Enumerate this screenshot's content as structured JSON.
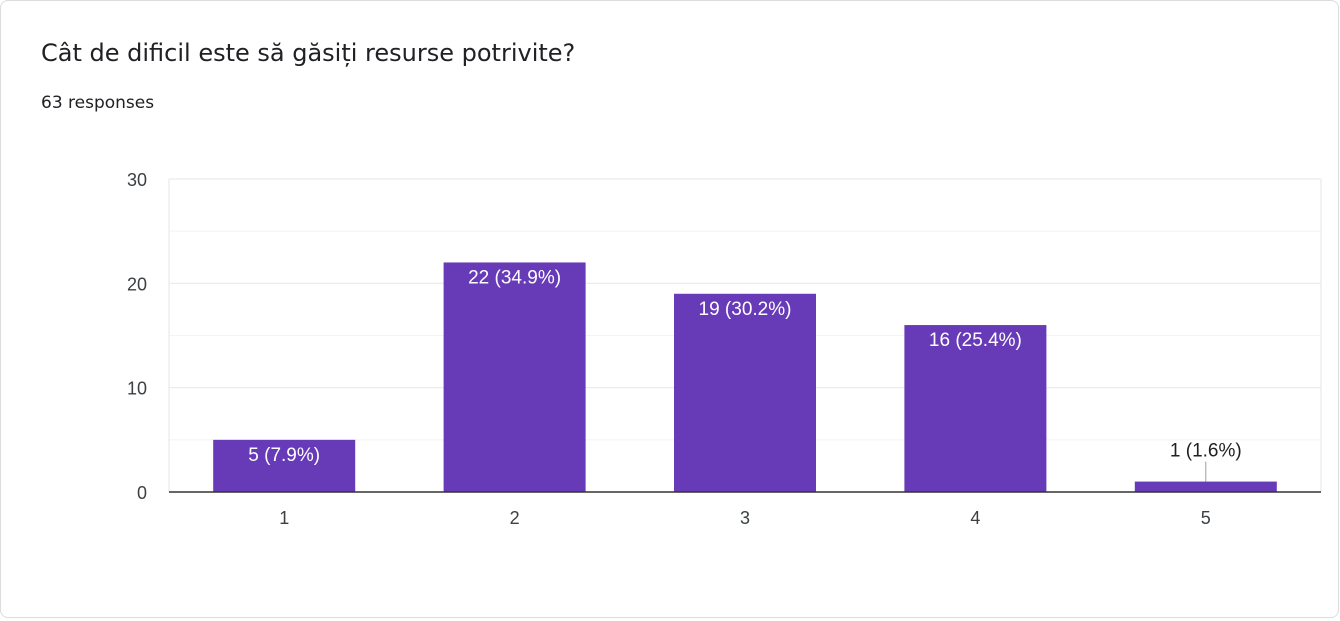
{
  "question": {
    "title": "Cât de dificil este să găsiți resurse potrivite?",
    "responses": "63 responses"
  },
  "colors": {
    "bar": "#673ab7",
    "grid": "#e8eaed",
    "axis": "#333333"
  },
  "chart_data": {
    "type": "bar",
    "title": "Cât de dificil este să găsiți resurse potrivite?",
    "categories": [
      "1",
      "2",
      "3",
      "4",
      "5"
    ],
    "values": [
      5,
      22,
      19,
      16,
      1
    ],
    "data_labels": [
      "5 (7.9%)",
      "22 (34.9%)",
      "19 (30.2%)",
      "16 (25.4%)",
      "1 (1.6%)"
    ],
    "ylim": [
      0,
      30
    ],
    "yticks": [
      0,
      10,
      20,
      30
    ],
    "grid": true,
    "xlabel": "",
    "ylabel": ""
  }
}
